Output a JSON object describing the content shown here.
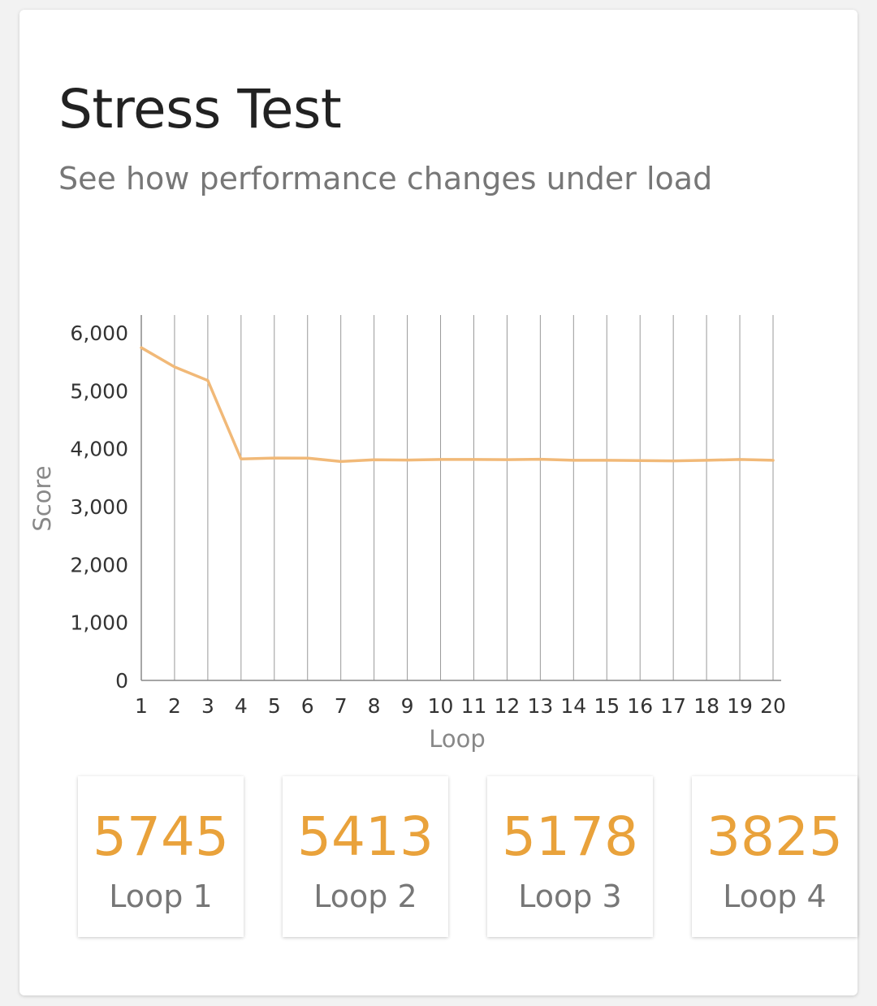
{
  "header": {
    "title": "Stress Test",
    "subtitle": "See how performance changes under load"
  },
  "colors": {
    "line": "#f1b978",
    "accent": "#e9a23b",
    "grid": "#999999"
  },
  "chart_data": {
    "type": "line",
    "title": "",
    "xlabel": "Loop",
    "ylabel": "Score",
    "x": [
      1,
      2,
      3,
      4,
      5,
      6,
      7,
      8,
      9,
      10,
      11,
      12,
      13,
      14,
      15,
      16,
      17,
      18,
      19,
      20
    ],
    "series": [
      {
        "values": [
          5745,
          5413,
          5178,
          3825,
          3840,
          3838,
          3780,
          3810,
          3805,
          3815,
          3815,
          3812,
          3818,
          3800,
          3800,
          3795,
          3790,
          3800,
          3815,
          3800
        ]
      }
    ],
    "ylim": [
      0,
      6000
    ],
    "yticks": [
      0,
      1000,
      2000,
      3000,
      4000,
      5000,
      6000
    ],
    "ytick_labels": [
      "0",
      "1,000",
      "2,000",
      "3,000",
      "4,000",
      "5,000",
      "6,000"
    ],
    "grid": "vertical"
  },
  "tiles": [
    {
      "score": "5745",
      "label": "Loop 1"
    },
    {
      "score": "5413",
      "label": "Loop 2"
    },
    {
      "score": "5178",
      "label": "Loop 3"
    },
    {
      "score": "3825",
      "label": "Loop 4"
    }
  ]
}
